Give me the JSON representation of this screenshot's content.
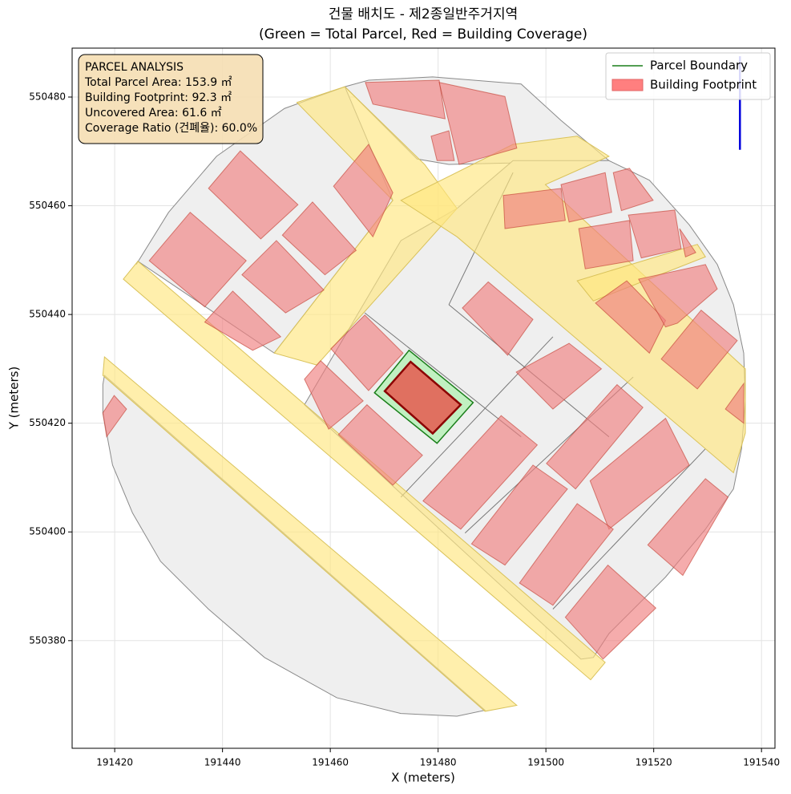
{
  "chart_data": {
    "type": "map",
    "title": "건물 배치도 - 제2종일반주거지역",
    "subtitle": "(Green = Total Parcel, Red = Building Coverage)",
    "xlabel": "X (meters)",
    "ylabel": "Y (meters)",
    "xlim": [
      191412.1,
      191542.5
    ],
    "ylim": [
      550360.2,
      550489.0
    ],
    "xticks": [
      191420,
      191440,
      191460,
      191480,
      191500,
      191520,
      191540
    ],
    "yticks": [
      550380,
      550400,
      550420,
      550440,
      550460,
      550480
    ],
    "grid": true,
    "parcels": {
      "color": "#efefef",
      "edgecolor": "#8a8a8a",
      "shapes": [
        {
          "x": [
            191417.8,
            191417.8,
            191419.6,
            191423.3,
            191428.5,
            191437.4,
            191447.8,
            191461.2,
            191473.1,
            191483.5,
            191488.7,
            191418.1
          ],
          "y": [
            550427.1,
            550421.9,
            550412.3,
            550403.5,
            550394.6,
            550385.8,
            550376.9,
            550369.5,
            550366.6,
            550366.1,
            550367.2,
            550428.8
          ]
        },
        {
          "x": [
            191424,
            191430,
            191438.9,
            191451.5,
            191462.7,
            191471.6,
            191449.6,
            191424.3
          ],
          "y": [
            550449.2,
            550458.8,
            550469.1,
            550477.9,
            550481.9,
            550461,
            550432.9,
            550449.8
          ]
        },
        {
          "x": [
            191462.7,
            191467.1,
            191479,
            191495.4,
            191502.8,
            191511.7,
            191482,
            191476.1
          ],
          "y": [
            550481.9,
            550483.1,
            550483.7,
            550482.4,
            550475.7,
            550468.3,
            550467.6,
            550468.6
          ]
        },
        {
          "x": [
            191455.2,
            191473.1,
            191483.5,
            191493.9,
            191511.7,
            191519.2,
            191526.6,
            191531.8,
            191534.8,
            191536.7,
            191537,
            191536.3,
            191534.8,
            191529.6,
            191522.2,
            191511.7,
            191508.8,
            191506.5
          ],
          "y": [
            550423.4,
            550453.6,
            550459.5,
            550468.3,
            550468.3,
            550464.7,
            550456.5,
            550449.2,
            550441.8,
            550432.9,
            550424.1,
            550415.3,
            550407.9,
            550400.5,
            550391.7,
            550381.3,
            550376.9,
            550376.6
          ]
        }
      ]
    },
    "parcel_lines": {
      "color": "#777777",
      "shapes": [
        {
          "x": [
            191466.4,
            191495.4
          ],
          "y": [
            550440.3,
            550417.5
          ]
        },
        {
          "x": [
            191482,
            191511.7
          ],
          "y": [
            550441.8,
            550417.5
          ]
        },
        {
          "x": [
            191473.1,
            191501.3
          ],
          "y": [
            550406.4,
            550435.9
          ]
        },
        {
          "x": [
            191485,
            191516.2
          ],
          "y": [
            550399.8,
            550428.5
          ]
        },
        {
          "x": [
            191501.3,
            191529.6
          ],
          "y": [
            550385.8,
            550415.3
          ]
        },
        {
          "x": [
            191493.9,
            191482
          ],
          "y": [
            550466.1,
            550441.8
          ]
        }
      ]
    },
    "roads": {
      "color": "#ffe680",
      "edgecolor": "#d9c25a",
      "shapes": [
        {
          "x": [
            191424.3,
            191511,
            191508.3,
            191421.6
          ],
          "y": [
            550449.8,
            550376,
            550372.8,
            550446.5
          ]
        },
        {
          "x": [
            191418.1,
            191494.6,
            191488.7,
            191417.8
          ],
          "y": [
            550432.2,
            550368.1,
            550367,
            550428.8
          ]
        },
        {
          "x": [
            191453.8,
            191462.7,
            191477.5,
            191483.5,
            191457.5,
            191449.6,
            191471.6
          ],
          "y": [
            550479,
            550481.9,
            550467.6,
            550459.5,
            550430.7,
            550432.9,
            550461
          ]
        },
        {
          "x": [
            191473.1,
            191493.9,
            191505.8,
            191511.7,
            191499.9,
            191537,
            191537,
            191534.8,
            191483.5
          ],
          "y": [
            550461,
            550471.3,
            550472.8,
            550469.1,
            550463.9,
            550430,
            550418.2,
            550410.9,
            550454.3
          ]
        },
        {
          "x": [
            191505.8,
            191528.1,
            191529.6,
            191508.8
          ],
          "y": [
            550446.2,
            550452.9,
            550450.6,
            550442.5
          ]
        }
      ]
    },
    "buildings": {
      "color": "#f08080",
      "edgecolor": "#c0392b",
      "shapes": [
        {
          "x": [
            191437.4,
            191443.3,
            191454,
            191447.1
          ],
          "y": [
            550463.2,
            550470.1,
            550460.2,
            550453.9
          ]
        },
        {
          "x": [
            191426.4,
            191434,
            191444.4,
            191436.7
          ],
          "y": [
            550449.9,
            550458.8,
            550449.9,
            550441.4
          ]
        },
        {
          "x": [
            191451.1,
            191456.7,
            191464.8,
            191459
          ],
          "y": [
            550454.6,
            550460.7,
            550451.8,
            550447.3
          ]
        },
        {
          "x": [
            191443.6,
            191450,
            191458.8,
            191451.7
          ],
          "y": [
            550447.3,
            550453.6,
            550444.5,
            550440.3
          ]
        },
        {
          "x": [
            191436.7,
            191441.9,
            191450.8,
            191445.6
          ],
          "y": [
            550438.6,
            550444.3,
            550435.9,
            550433.4
          ]
        },
        {
          "x": [
            191460.6,
            191467.1,
            191471.6,
            191467.9
          ],
          "y": [
            550463.6,
            550471.3,
            550462.4,
            550454.3
          ]
        },
        {
          "x": [
            191466.5,
            191480.2,
            191481.3,
            191467.9
          ],
          "y": [
            550482.7,
            550483.1,
            550476,
            550478.7
          ]
        },
        {
          "x": [
            191480.2,
            191492.4,
            191494.6,
            191483.9
          ],
          "y": [
            550482.7,
            550480.1,
            550470.6,
            550467.6
          ]
        },
        {
          "x": [
            191478.7,
            191482,
            191483,
            191479.8
          ],
          "y": [
            550472.8,
            550473.8,
            550468.3,
            550468.3
          ]
        },
        {
          "x": [
            191460.1,
            191466.4,
            191473.5,
            191467.1
          ],
          "y": [
            550433.7,
            550439.9,
            550432.9,
            550426
          ]
        },
        {
          "x": [
            191455.2,
            191458.2,
            191466.1,
            191459.7
          ],
          "y": [
            550428.1,
            550431.5,
            550424.1,
            550418.9
          ]
        },
        {
          "x": [
            191461.5,
            191466.8,
            191477.1,
            191471.6
          ],
          "y": [
            550417.9,
            550423.4,
            550414.1,
            550408.6
          ]
        },
        {
          "x": [
            191484.5,
            191489.3,
            191497.6,
            191492.9
          ],
          "y": [
            550441.2,
            550446,
            550439.1,
            550432.5
          ]
        },
        {
          "x": [
            191492.1,
            191502.8,
            191503.6,
            191492.4
          ],
          "y": [
            550461.9,
            550463.2,
            550457.3,
            550455.8
          ]
        },
        {
          "x": [
            191502.8,
            191511,
            191512.2,
            191504.3
          ],
          "y": [
            550463.9,
            550466.1,
            550458.8,
            550457
          ]
        },
        {
          "x": [
            191512.5,
            191515.5,
            191519.9,
            191514
          ],
          "y": [
            550466.1,
            550466.9,
            550461,
            550459.1
          ]
        },
        {
          "x": [
            191506.1,
            191515.5,
            191516.2,
            191507.3
          ],
          "y": [
            550455.8,
            550457.3,
            550449.9,
            550448.4
          ]
        },
        {
          "x": [
            191515.3,
            191523.9,
            191525.1,
            191517.7
          ],
          "y": [
            550458.3,
            550459.2,
            550452.1,
            550450.4
          ]
        },
        {
          "x": [
            191524.8,
            191527.8,
            191525.9
          ],
          "y": [
            550455.8,
            550451.4,
            550450.6
          ]
        },
        {
          "x": [
            191509.2,
            191515,
            191522.2,
            191519.2
          ],
          "y": [
            550442.1,
            550446.2,
            550438.9,
            550432.9
          ]
        },
        {
          "x": [
            191517.2,
            191529.6,
            191531.8,
            191524.4,
            191522.2
          ],
          "y": [
            550446.5,
            550449.2,
            550444.7,
            550438.4,
            550437.7
          ]
        },
        {
          "x": [
            191521.4,
            191528.8,
            191535.5,
            191528.1
          ],
          "y": [
            550431.8,
            550440.8,
            550435.2,
            550426.3
          ]
        },
        {
          "x": [
            191533.3,
            191536.7,
            191536.7
          ],
          "y": [
            550422.6,
            550427.3,
            550420
          ]
        },
        {
          "x": [
            191494.5,
            191504.3,
            191510.3,
            191501.3
          ],
          "y": [
            550429.4,
            550434.7,
            550430,
            550422.6
          ]
        },
        {
          "x": [
            191500.1,
            191513.2,
            191518,
            191505.5
          ],
          "y": [
            550412.6,
            550427.1,
            550422.9,
            550407.9
          ]
        },
        {
          "x": [
            191477.2,
            191491.7,
            191498.4,
            191484.2
          ],
          "y": [
            550405.7,
            550421.4,
            550416,
            550400.5
          ]
        },
        {
          "x": [
            191486.2,
            191497.6,
            191504,
            191492.4
          ],
          "y": [
            550397.8,
            550412.3,
            550407.9,
            550393.9
          ]
        },
        {
          "x": [
            191508.2,
            191522.2,
            191526.6,
            191511.7
          ],
          "y": [
            550409.4,
            550420.9,
            550412.3,
            550400.5
          ]
        },
        {
          "x": [
            191495.1,
            191505.8,
            191512.5,
            191501.3
          ],
          "y": [
            550390.6,
            550405.2,
            550400.5,
            550386.5
          ]
        },
        {
          "x": [
            191518.9,
            191529.6,
            191533.8,
            191525.4
          ],
          "y": [
            550397.6,
            550409.8,
            550406.4,
            550392
          ]
        },
        {
          "x": [
            191503.6,
            191511.5,
            191520.4,
            191510.6
          ],
          "y": [
            550384.3,
            550393.9,
            550386,
            550376.6
          ]
        },
        {
          "x": [
            191417.8,
            191419.9,
            191422.2,
            191418.5
          ],
          "y": [
            550421.9,
            550425.1,
            550422.6,
            550417.5
          ]
        }
      ]
    },
    "target_parcel": {
      "color": "#b8f0b8",
      "edgecolor": "#1a7f1a",
      "x": [
        191468.2,
        191474.6,
        191486.5,
        191479.8
      ],
      "y": [
        550425.6,
        550433.4,
        550423.8,
        550416.3
      ]
    },
    "target_building": {
      "color": "#e07060",
      "edgecolor": "#8b0000",
      "x": [
        191470.1,
        191474.9,
        191484.2,
        191479
      ],
      "y": [
        550425.9,
        550431.3,
        550423.4,
        550418.1
      ]
    },
    "north_arrow": {
      "color": "#0000dd",
      "x": [
        191536,
        191536
      ],
      "y": [
        550470.3,
        550487.5
      ]
    },
    "annotation": {
      "loc": "upper left",
      "facecolor": "#f5deb3",
      "lines": [
        "PARCEL ANALYSIS",
        "Total Parcel Area: 153.9 ㎡",
        "Building Footprint: 92.3 ㎡",
        "Uncovered Area: 61.6 ㎡",
        "Coverage Ratio (건폐율): 60.0%"
      ]
    },
    "legend": {
      "loc": "upper right",
      "entries": [
        {
          "name": "Parcel Boundary",
          "color": "#1a7f1a",
          "marker": "line"
        },
        {
          "name": "Building Footprint",
          "color": "#ff7f7f",
          "marker": "patch"
        }
      ]
    }
  }
}
